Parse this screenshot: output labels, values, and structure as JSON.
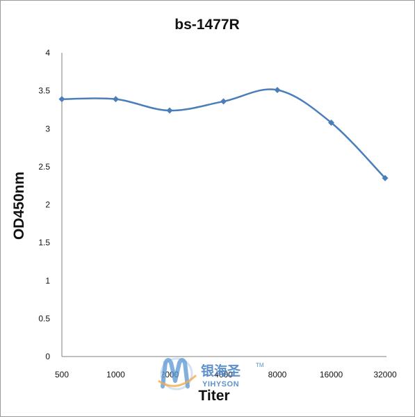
{
  "chart_data": {
    "type": "line",
    "title": "bs-1477R",
    "xlabel": "Titer",
    "ylabel": "OD450nm",
    "categories": [
      "500",
      "1000",
      "2000",
      "4000",
      "8000",
      "16000",
      "32000"
    ],
    "series": [
      {
        "values": [
          3.39,
          3.39,
          3.24,
          3.36,
          3.51,
          3.08,
          2.35
        ]
      }
    ],
    "ylim": [
      0,
      4
    ],
    "yticks": [
      "0",
      "0.5",
      "1",
      "1.5",
      "2",
      "2.5",
      "3",
      "3.5",
      "4"
    ],
    "grid": false,
    "legend": "none",
    "line_color": "#4a7ebb",
    "marker": "diamond"
  },
  "watermark": {
    "cn": "银海圣",
    "en": "YIHYSON",
    "tm": "TM"
  }
}
